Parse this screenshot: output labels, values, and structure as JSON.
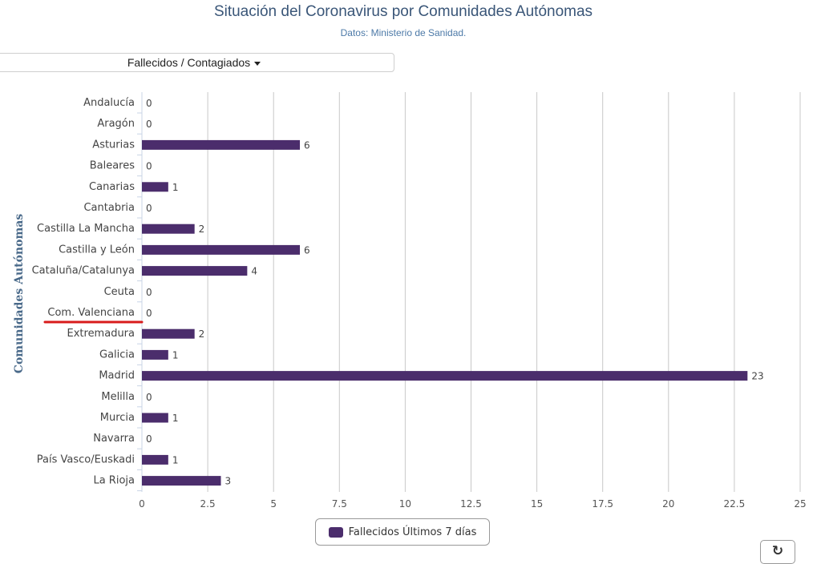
{
  "header": {
    "title": "Situación del Coronavirus por Comunidades Autónomas",
    "subtitle": "Datos: Ministerio de Sanidad."
  },
  "selector": {
    "label": "Fallecidos / Contagiados"
  },
  "toolbar": {
    "refresh_icon": "refresh-icon"
  },
  "colors": {
    "bar": "#4b2d6c",
    "highlight_underline": "#d81b1b",
    "grid": "#c8c8c8",
    "axis": "#c8d4e6"
  },
  "chart_data": {
    "type": "bar",
    "orientation": "horizontal",
    "title": "Situación del Coronavirus por Comunidades Autónomas",
    "subtitle": "Datos: Ministerio de Sanidad.",
    "ylabel": "Comunidades Autónomas",
    "xlabel": "",
    "categories": [
      "Andalucía",
      "Aragón",
      "Asturias",
      "Baleares",
      "Canarias",
      "Cantabria",
      "Castilla La Mancha",
      "Castilla y León",
      "Cataluña/Catalunya",
      "Ceuta",
      "Com. Valenciana",
      "Extremadura",
      "Galicia",
      "Madrid",
      "Melilla",
      "Murcia",
      "Navarra",
      "País Vasco/Euskadi",
      "La Rioja"
    ],
    "series": [
      {
        "name": "Fallecidos Últimos 7 días",
        "values": [
          0,
          0,
          6,
          0,
          1,
          0,
          2,
          6,
          4,
          0,
          0,
          2,
          1,
          23,
          0,
          1,
          0,
          1,
          3
        ]
      }
    ],
    "xlim": [
      0,
      25
    ],
    "ticks": [
      0,
      2.5,
      5,
      7.5,
      10,
      12.5,
      15,
      17.5,
      20,
      22.5,
      25
    ],
    "tick_labels": [
      "0",
      "2.5",
      "5",
      "7.5",
      "10",
      "12.5",
      "15",
      "17.5",
      "20",
      "22.5",
      "25"
    ],
    "grid": true,
    "legend_position": "bottom-center",
    "highlighted_category": "Com. Valenciana"
  }
}
